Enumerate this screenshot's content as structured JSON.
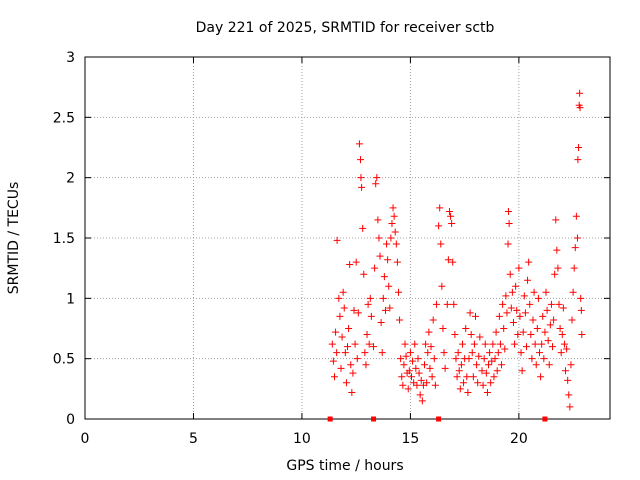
{
  "chart_data": {
    "type": "scatter",
    "title": "Day 221 of 2025, SRMTID for receiver sctb",
    "xlabel": "GPS time / hours",
    "ylabel": "SRMTID / TECUs",
    "xlim": [
      0,
      24.2
    ],
    "ylim": [
      0,
      3
    ],
    "xticks": [
      0,
      5,
      10,
      15,
      20
    ],
    "yticks": [
      0,
      0.5,
      1,
      1.5,
      2,
      2.5,
      3
    ],
    "ytick_labels": [
      "0",
      "0.5",
      "1",
      "1.5",
      "2",
      "2.5",
      "3"
    ],
    "grid": true,
    "marker": "+",
    "marker_color": "#ff0000",
    "axis_markers": {
      "description": "small red squares on x-axis",
      "x": [
        11.3,
        13.3,
        16.3,
        21.2
      ]
    },
    "series": [
      {
        "name": "SRMTID",
        "points": [
          [
            11.4,
            0.62
          ],
          [
            11.45,
            0.48
          ],
          [
            11.5,
            0.35
          ],
          [
            11.55,
            0.72
          ],
          [
            11.6,
            0.55
          ],
          [
            11.62,
            1.48
          ],
          [
            11.7,
            1.0
          ],
          [
            11.75,
            0.85
          ],
          [
            11.8,
            0.42
          ],
          [
            11.85,
            0.68
          ],
          [
            11.9,
            1.05
          ],
          [
            11.95,
            0.92
          ],
          [
            12.0,
            0.55
          ],
          [
            12.05,
            0.3
          ],
          [
            12.1,
            0.6
          ],
          [
            12.15,
            0.75
          ],
          [
            12.2,
            1.28
          ],
          [
            12.25,
            0.45
          ],
          [
            12.3,
            0.22
          ],
          [
            12.35,
            0.38
          ],
          [
            12.4,
            0.9
          ],
          [
            12.45,
            0.62
          ],
          [
            12.5,
            1.3
          ],
          [
            12.55,
            0.5
          ],
          [
            12.6,
            0.88
          ],
          [
            12.65,
            2.28
          ],
          [
            12.7,
            2.15
          ],
          [
            12.72,
            2.0
          ],
          [
            12.75,
            1.92
          ],
          [
            12.8,
            1.58
          ],
          [
            12.85,
            1.2
          ],
          [
            12.9,
            0.55
          ],
          [
            12.95,
            0.45
          ],
          [
            13.0,
            0.7
          ],
          [
            13.05,
            0.95
          ],
          [
            13.1,
            0.62
          ],
          [
            13.15,
            1.0
          ],
          [
            13.2,
            0.85
          ],
          [
            13.3,
            0.6
          ],
          [
            13.35,
            1.25
          ],
          [
            13.4,
            1.95
          ],
          [
            13.45,
            2.0
          ],
          [
            13.5,
            1.65
          ],
          [
            13.55,
            1.5
          ],
          [
            13.6,
            1.35
          ],
          [
            13.65,
            0.8
          ],
          [
            13.7,
            0.55
          ],
          [
            13.75,
            1.0
          ],
          [
            13.8,
            1.18
          ],
          [
            13.85,
            0.9
          ],
          [
            13.9,
            1.45
          ],
          [
            13.95,
            1.32
          ],
          [
            14.0,
            1.1
          ],
          [
            14.05,
            0.92
          ],
          [
            14.1,
            1.5
          ],
          [
            14.15,
            1.62
          ],
          [
            14.2,
            1.75
          ],
          [
            14.25,
            1.68
          ],
          [
            14.3,
            1.55
          ],
          [
            14.35,
            1.45
          ],
          [
            14.4,
            1.3
          ],
          [
            14.45,
            1.05
          ],
          [
            14.5,
            0.82
          ],
          [
            14.55,
            0.5
          ],
          [
            14.6,
            0.35
          ],
          [
            14.65,
            0.28
          ],
          [
            14.7,
            0.45
          ],
          [
            14.75,
            0.62
          ],
          [
            14.8,
            0.52
          ],
          [
            14.85,
            0.38
          ],
          [
            14.9,
            0.25
          ],
          [
            14.95,
            0.4
          ],
          [
            15.0,
            0.55
          ],
          [
            15.05,
            0.35
          ],
          [
            15.1,
            0.48
          ],
          [
            15.15,
            0.3
          ],
          [
            15.2,
            0.62
          ],
          [
            15.25,
            0.42
          ],
          [
            15.3,
            0.28
          ],
          [
            15.35,
            0.5
          ],
          [
            15.4,
            0.38
          ],
          [
            15.45,
            0.2
          ],
          [
            15.5,
            0.32
          ],
          [
            15.55,
            0.15
          ],
          [
            15.6,
            0.28
          ],
          [
            15.65,
            0.45
          ],
          [
            15.7,
            0.62
          ],
          [
            15.75,
            0.3
          ],
          [
            15.8,
            0.55
          ],
          [
            15.85,
            0.72
          ],
          [
            15.9,
            0.42
          ],
          [
            15.95,
            0.6
          ],
          [
            16.0,
            0.35
          ],
          [
            16.05,
            0.82
          ],
          [
            16.1,
            0.5
          ],
          [
            16.15,
            0.28
          ],
          [
            16.2,
            0.95
          ],
          [
            16.3,
            1.6
          ],
          [
            16.35,
            1.75
          ],
          [
            16.4,
            1.45
          ],
          [
            16.45,
            1.1
          ],
          [
            16.5,
            0.75
          ],
          [
            16.55,
            0.55
          ],
          [
            16.6,
            0.42
          ],
          [
            16.7,
            0.95
          ],
          [
            16.75,
            1.32
          ],
          [
            16.8,
            1.72
          ],
          [
            16.85,
            1.68
          ],
          [
            16.9,
            1.62
          ],
          [
            16.95,
            1.3
          ],
          [
            17.0,
            0.95
          ],
          [
            17.05,
            0.7
          ],
          [
            17.1,
            0.5
          ],
          [
            17.15,
            0.35
          ],
          [
            17.2,
            0.55
          ],
          [
            17.25,
            0.4
          ],
          [
            17.3,
            0.25
          ],
          [
            17.35,
            0.45
          ],
          [
            17.4,
            0.62
          ],
          [
            17.45,
            0.3
          ],
          [
            17.5,
            0.5
          ],
          [
            17.55,
            0.75
          ],
          [
            17.6,
            0.35
          ],
          [
            17.65,
            0.22
          ],
          [
            17.7,
            0.5
          ],
          [
            17.75,
            0.88
          ],
          [
            17.8,
            0.7
          ],
          [
            17.85,
            0.55
          ],
          [
            17.9,
            0.35
          ],
          [
            17.95,
            0.62
          ],
          [
            18.0,
            0.85
          ],
          [
            18.05,
            0.45
          ],
          [
            18.1,
            0.3
          ],
          [
            18.15,
            0.52
          ],
          [
            18.2,
            0.68
          ],
          [
            18.3,
            0.4
          ],
          [
            18.35,
            0.28
          ],
          [
            18.4,
            0.5
          ],
          [
            18.45,
            0.62
          ],
          [
            18.5,
            0.38
          ],
          [
            18.55,
            0.22
          ],
          [
            18.6,
            0.45
          ],
          [
            18.65,
            0.55
          ],
          [
            18.7,
            0.3
          ],
          [
            18.75,
            0.48
          ],
          [
            18.8,
            0.62
          ],
          [
            18.85,
            0.35
          ],
          [
            18.9,
            0.5
          ],
          [
            18.95,
            0.72
          ],
          [
            19.0,
            0.4
          ],
          [
            19.05,
            0.55
          ],
          [
            19.1,
            0.85
          ],
          [
            19.15,
            0.62
          ],
          [
            19.2,
            0.45
          ],
          [
            19.25,
            0.95
          ],
          [
            19.3,
            0.75
          ],
          [
            19.35,
            0.58
          ],
          [
            19.4,
            1.02
          ],
          [
            19.45,
            0.88
          ],
          [
            19.5,
            1.45
          ],
          [
            19.52,
            1.72
          ],
          [
            19.55,
            1.62
          ],
          [
            19.6,
            1.2
          ],
          [
            19.65,
            0.92
          ],
          [
            19.7,
            1.05
          ],
          [
            19.75,
            0.8
          ],
          [
            19.8,
            0.62
          ],
          [
            19.85,
            1.1
          ],
          [
            19.9,
            0.9
          ],
          [
            19.95,
            0.7
          ],
          [
            20.0,
            1.25
          ],
          [
            20.05,
            0.85
          ],
          [
            20.1,
            0.55
          ],
          [
            20.15,
            0.4
          ],
          [
            20.2,
            0.72
          ],
          [
            20.25,
            1.02
          ],
          [
            20.3,
            0.88
          ],
          [
            20.35,
            0.6
          ],
          [
            20.4,
            1.15
          ],
          [
            20.45,
            1.3
          ],
          [
            20.5,
            0.95
          ],
          [
            20.55,
            0.7
          ],
          [
            20.6,
            0.5
          ],
          [
            20.65,
            0.82
          ],
          [
            20.7,
            1.05
          ],
          [
            20.75,
            0.62
          ],
          [
            20.8,
            0.45
          ],
          [
            20.85,
            0.75
          ],
          [
            20.9,
            1.0
          ],
          [
            20.95,
            0.55
          ],
          [
            21.0,
            0.35
          ],
          [
            21.05,
            0.62
          ],
          [
            21.1,
            0.85
          ],
          [
            21.15,
            0.5
          ],
          [
            21.2,
            0.72
          ],
          [
            21.25,
            1.05
          ],
          [
            21.3,
            0.9
          ],
          [
            21.35,
            0.65
          ],
          [
            21.4,
            0.45
          ],
          [
            21.45,
            0.78
          ],
          [
            21.5,
            0.95
          ],
          [
            21.55,
            0.6
          ],
          [
            21.6,
            0.82
          ],
          [
            21.65,
            1.2
          ],
          [
            21.7,
            1.65
          ],
          [
            21.75,
            1.4
          ],
          [
            21.8,
            1.25
          ],
          [
            21.85,
            0.95
          ],
          [
            21.9,
            0.75
          ],
          [
            21.95,
            0.55
          ],
          [
            22.0,
            0.7
          ],
          [
            22.05,
            0.92
          ],
          [
            22.1,
            0.62
          ],
          [
            22.15,
            0.4
          ],
          [
            22.2,
            0.58
          ],
          [
            22.25,
            0.32
          ],
          [
            22.3,
            0.2
          ],
          [
            22.35,
            0.1
          ],
          [
            22.4,
            0.45
          ],
          [
            22.45,
            0.82
          ],
          [
            22.5,
            1.05
          ],
          [
            22.55,
            1.25
          ],
          [
            22.6,
            1.42
          ],
          [
            22.65,
            1.68
          ],
          [
            22.7,
            1.5
          ],
          [
            22.72,
            2.15
          ],
          [
            22.75,
            2.25
          ],
          [
            22.78,
            2.6
          ],
          [
            22.8,
            2.7
          ],
          [
            22.82,
            2.58
          ],
          [
            22.85,
            1.0
          ],
          [
            22.88,
            0.9
          ],
          [
            22.9,
            0.7
          ]
        ]
      }
    ]
  }
}
